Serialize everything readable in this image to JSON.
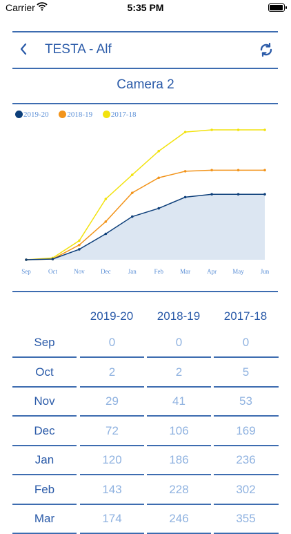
{
  "status_bar": {
    "carrier": "Carrier",
    "time": "5:35 PM"
  },
  "nav": {
    "title": "TESTA - Alf",
    "back_icon": "chevron-left-icon",
    "refresh_icon": "refresh-icon"
  },
  "subtitle": "Camera 2",
  "colors": {
    "accent": "#2a5aa8",
    "series_2019_20": "#0d3f7a",
    "series_2018_19": "#f2941b",
    "series_2017_18": "#f2e20e",
    "area_fill": "#dce6f2"
  },
  "chart_data": {
    "type": "line",
    "categories": [
      "Sep",
      "Oct",
      "Nov",
      "Dec",
      "Jan",
      "Feb",
      "Mar",
      "Apr",
      "May",
      "Jun"
    ],
    "series": [
      {
        "name": "2019-20",
        "values": [
          0,
          2,
          29,
          72,
          120,
          143,
          174,
          182,
          182,
          182
        ],
        "color": "#0d3f7a",
        "filled": true
      },
      {
        "name": "2018-19",
        "values": [
          0,
          2,
          41,
          106,
          186,
          228,
          246,
          249,
          249,
          249
        ],
        "color": "#f2941b"
      },
      {
        "name": "2017-18",
        "values": [
          0,
          5,
          53,
          169,
          236,
          302,
          355,
          361,
          361,
          361
        ],
        "color": "#f2e20e"
      }
    ],
    "legend": "top-left",
    "grid": false
  },
  "table": {
    "headers": [
      "2019-20",
      "2018-19",
      "2017-18"
    ],
    "rows": [
      {
        "month": "Sep",
        "values": [
          "0",
          "0",
          "0"
        ]
      },
      {
        "month": "Oct",
        "values": [
          "2",
          "2",
          "5"
        ]
      },
      {
        "month": "Nov",
        "values": [
          "29",
          "41",
          "53"
        ]
      },
      {
        "month": "Dec",
        "values": [
          "72",
          "106",
          "169"
        ]
      },
      {
        "month": "Jan",
        "values": [
          "120",
          "186",
          "236"
        ]
      },
      {
        "month": "Feb",
        "values": [
          "143",
          "228",
          "302"
        ]
      },
      {
        "month": "Mar",
        "values": [
          "174",
          "246",
          "355"
        ]
      }
    ]
  }
}
